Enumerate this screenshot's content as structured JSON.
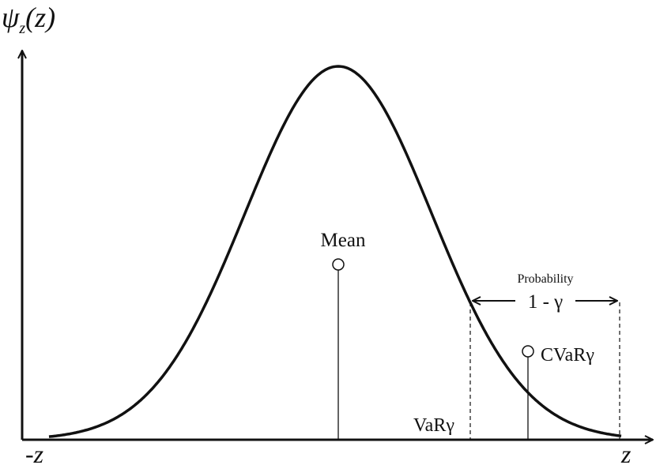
{
  "y_axis_label": {
    "symbol": "ψ",
    "subscript": "z",
    "argument": "(z)"
  },
  "x_axis": {
    "left_label": "-z",
    "right_label": "z"
  },
  "annotations": {
    "mean": "Mean",
    "probability": "Probability",
    "tail": "1 - γ",
    "var": "VaRγ",
    "cvar": "CVaRγ"
  }
}
